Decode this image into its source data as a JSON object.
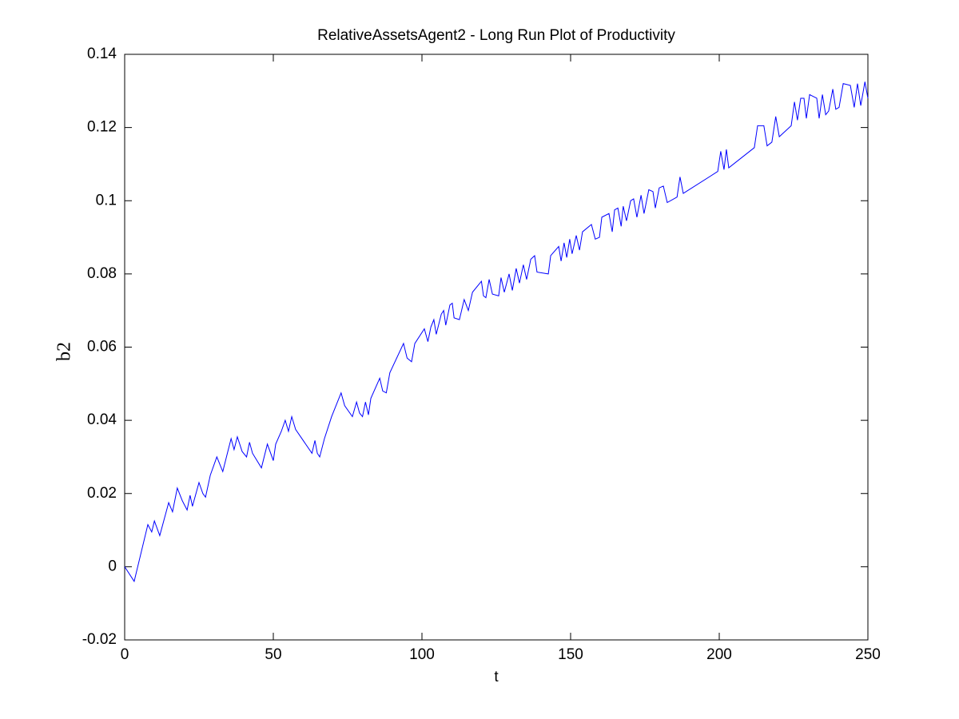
{
  "chart_data": {
    "type": "line",
    "title": "RelativeAssetsAgent2 - Long Run Plot of Productivity",
    "x_label": "t",
    "y_label": "b2",
    "color": "#0000ff",
    "x": [
      0,
      3.2,
      7.8,
      9.1,
      10,
      11.8,
      14.8,
      16.1,
      17.7,
      19.4,
      21,
      22,
      22.8,
      25,
      26.3,
      27.2,
      28.8,
      31,
      33,
      34.7,
      35.8,
      36.8,
      37.9,
      39.5,
      41,
      42,
      43,
      46,
      48,
      50,
      50.8,
      52.7,
      54,
      55.1,
      56.2,
      57.5,
      63,
      64,
      64.8,
      65.6,
      67.2,
      69.6,
      72.8,
      74,
      76.6,
      78,
      79,
      80,
      81,
      82,
      82.8,
      85.8,
      86.8,
      88,
      89.2,
      93.8,
      95,
      96.5,
      97.6,
      100.8,
      102,
      103,
      104,
      104.8,
      106.5,
      107.3,
      108,
      109.4,
      110.2,
      110.8,
      112.6,
      114.2,
      115.6,
      117,
      120,
      120.7,
      121.5,
      122.6,
      123.7,
      125.8,
      126.6,
      127.7,
      129.3,
      130.4,
      131.7,
      132.8,
      134.1,
      135.2,
      136.6,
      137.9,
      138.7,
      142.5,
      143.3,
      146,
      146.8,
      147.8,
      148.7,
      149.7,
      150.5,
      151.9,
      153,
      154,
      157,
      158.3,
      159.7,
      160.5,
      162.9,
      164,
      164.8,
      165.9,
      167,
      167.7,
      168.8,
      170.2,
      171.2,
      172.3,
      173.7,
      174.7,
      176.3,
      177.7,
      178.5,
      179.8,
      181.2,
      182.5,
      185.8,
      186.8,
      187.9,
      199.5,
      200.5,
      201.6,
      202.4,
      203.2,
      211.8,
      212.9,
      215,
      216.1,
      217.7,
      219,
      220.2,
      224.2,
      225.3,
      226.3,
      227.4,
      228.5,
      229.3,
      230.4,
      232.8,
      233.6,
      234.7,
      235.8,
      236.8,
      238.2,
      239.2,
      240.3,
      241.7,
      244.1,
      245.4,
      246.5,
      247.6,
      249,
      250
    ],
    "values": [
      0,
      -0.004,
      0.0115,
      0.0095,
      0.0125,
      0.0085,
      0.0175,
      0.015,
      0.0215,
      0.018,
      0.0155,
      0.0195,
      0.0165,
      0.023,
      0.02,
      0.019,
      0.025,
      0.03,
      0.026,
      0.0315,
      0.035,
      0.032,
      0.0355,
      0.0315,
      0.03,
      0.034,
      0.031,
      0.027,
      0.0335,
      0.029,
      0.0335,
      0.037,
      0.04,
      0.037,
      0.041,
      0.0375,
      0.031,
      0.0345,
      0.031,
      0.03,
      0.035,
      0.041,
      0.0475,
      0.044,
      0.041,
      0.045,
      0.042,
      0.041,
      0.045,
      0.0415,
      0.046,
      0.0515,
      0.048,
      0.0475,
      0.053,
      0.061,
      0.057,
      0.056,
      0.061,
      0.065,
      0.0615,
      0.0655,
      0.0675,
      0.0635,
      0.069,
      0.07,
      0.066,
      0.0715,
      0.072,
      0.068,
      0.0675,
      0.073,
      0.07,
      0.075,
      0.078,
      0.074,
      0.0735,
      0.0785,
      0.0745,
      0.074,
      0.079,
      0.075,
      0.08,
      0.0755,
      0.0815,
      0.0775,
      0.0825,
      0.0785,
      0.084,
      0.085,
      0.0805,
      0.08,
      0.085,
      0.0875,
      0.0835,
      0.0885,
      0.0845,
      0.0895,
      0.0855,
      0.0905,
      0.0865,
      0.0915,
      0.0935,
      0.0895,
      0.09,
      0.0955,
      0.0965,
      0.0915,
      0.0975,
      0.098,
      0.093,
      0.0985,
      0.0945,
      0.1,
      0.1005,
      0.0955,
      0.1015,
      0.0965,
      0.103,
      0.1025,
      0.098,
      0.1035,
      0.104,
      0.0995,
      0.101,
      0.1065,
      0.102,
      0.108,
      0.1135,
      0.1085,
      0.114,
      0.109,
      0.1145,
      0.1205,
      0.1205,
      0.115,
      0.116,
      0.123,
      0.1175,
      0.1205,
      0.127,
      0.122,
      0.128,
      0.128,
      0.1225,
      0.129,
      0.128,
      0.1225,
      0.129,
      0.1235,
      0.1245,
      0.1305,
      0.125,
      0.1255,
      0.132,
      0.1315,
      0.1255,
      0.132,
      0.126,
      0.1325,
      0.128
    ],
    "xlim": [
      0,
      250
    ],
    "xticks": [
      0,
      50,
      100,
      150,
      200,
      250
    ],
    "ylim": [
      -0.02,
      0.14
    ],
    "yticks": [
      -0.02,
      0,
      0.02,
      0.04,
      0.06,
      0.08,
      0.1,
      0.12,
      0.14
    ],
    "grid": false
  }
}
